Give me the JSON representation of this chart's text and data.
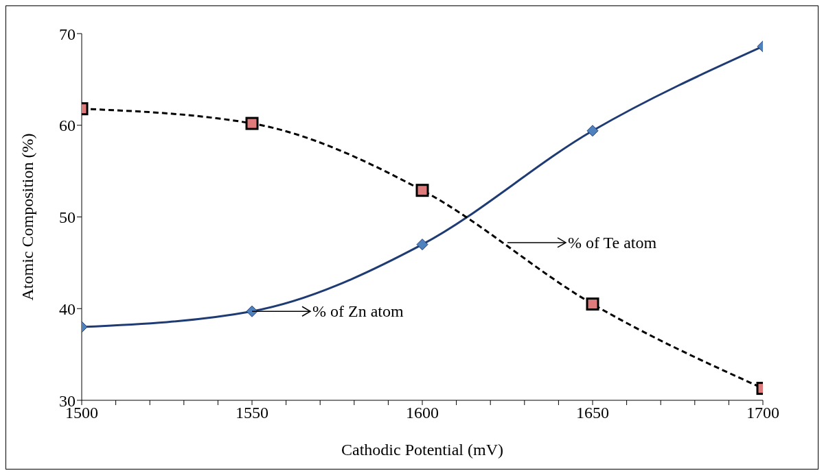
{
  "chart_data": {
    "type": "line",
    "xlabel": "Cathodic Potential (mV)",
    "ylabel": "Atomic Composition (%)",
    "x": [
      1500,
      1550,
      1600,
      1650,
      1700
    ],
    "series": [
      {
        "color": "#1f3b73",
        "values": [
          38.0,
          39.7,
          47.0,
          59.4,
          68.6
        ],
        "marker": "diamond",
        "line_style": "solid"
      },
      {
        "color": "#000000",
        "values": [
          61.8,
          60.2,
          52.9,
          40.5,
          31.3
        ],
        "marker": "square",
        "line_style": "dashed"
      }
    ],
    "xlim": [
      1500,
      1700
    ],
    "xticks": [
      1500,
      {
        "value": 1510,
        "label": null
      },
      {
        "value": 1520,
        "label": null
      },
      {
        "value": 1530,
        "label": null
      },
      {
        "value": 1540,
        "label": null
      },
      1550,
      {
        "value": 1560,
        "label": null
      },
      {
        "value": 1570,
        "label": null
      },
      {
        "value": 1580,
        "label": null
      },
      {
        "value": 1590,
        "label": null
      },
      1600,
      {
        "value": 1610,
        "label": null
      },
      {
        "value": 1620,
        "label": null
      },
      {
        "value": 1630,
        "label": null
      },
      {
        "value": 1640,
        "label": null
      },
      1650,
      {
        "value": 1660,
        "label": null
      },
      {
        "value": 1670,
        "label": null
      },
      {
        "value": 1680,
        "label": null
      },
      {
        "value": 1690,
        "label": null
      },
      1700
    ],
    "ylim": [
      30,
      70
    ],
    "yticks": [
      30,
      40,
      50,
      60,
      70
    ],
    "annotations": [
      "% of Zn atom",
      "% of Te atom"
    ]
  }
}
